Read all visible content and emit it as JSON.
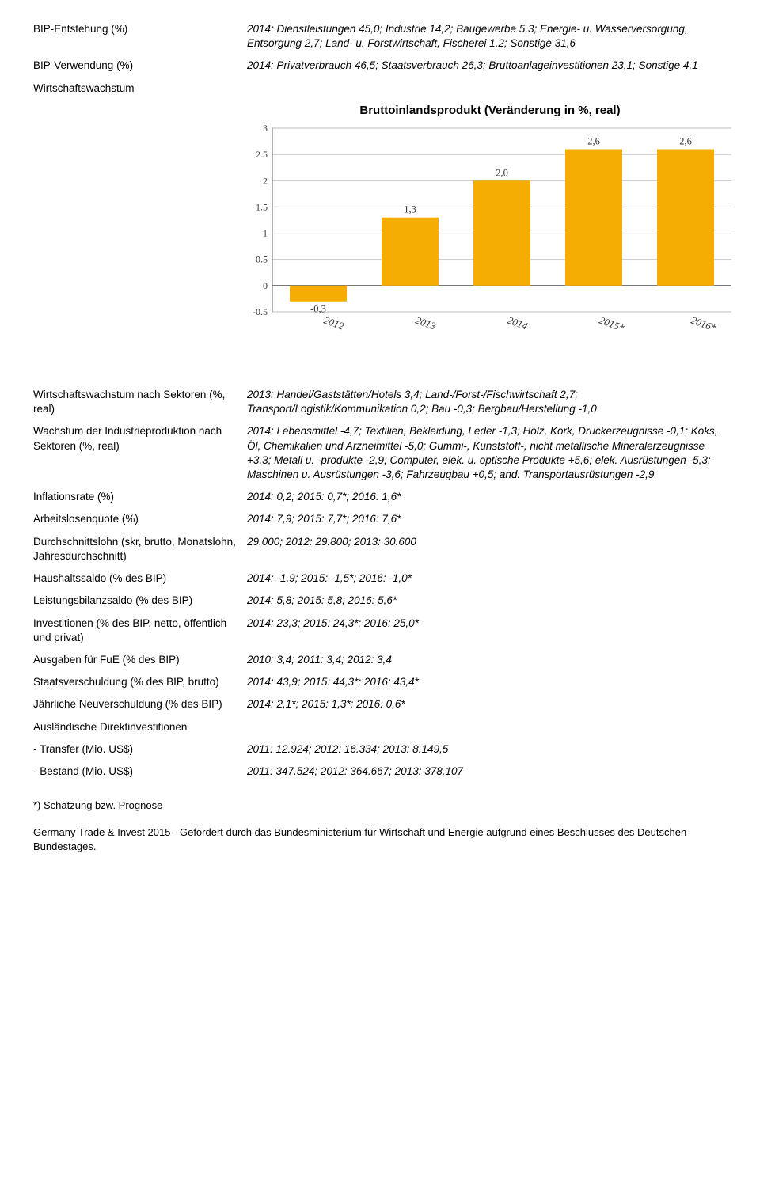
{
  "rows_top": [
    {
      "label": "BIP-Entstehung (%)",
      "value": "2014: Dienstleistungen 45,0; Industrie 14,2; Baugewerbe 5,3; Energie- u. Wasserversorgung, Entsorgung 2,7; Land- u. Forstwirtschaft, Fischerei 1,2; Sonstige 31,6"
    },
    {
      "label": "BIP-Verwendung (%)",
      "value": "2014: Privatverbrauch 46,5; Staatsverbrauch 26,3; Bruttoanlageinvestitionen 23,1; Sonstige 4,1"
    }
  ],
  "wirtschaftswachstum_label": "Wirtschaftswachstum",
  "chart": {
    "title": "Bruttoinlandsprodukt (Veränderung in %, real)",
    "categories": [
      "2012",
      "2013",
      "2014",
      "2015*",
      "2016*"
    ],
    "values": [
      -0.3,
      1.3,
      2.0,
      2.6,
      2.6
    ],
    "value_labels": [
      "-0,3",
      "1,3",
      "2,0",
      "2,6",
      "2,6"
    ],
    "yticks": [
      -0.5,
      0,
      0.5,
      1,
      1.5,
      2,
      2.5,
      3
    ],
    "ytick_labels": [
      "-0.5",
      "0",
      "0.5",
      "1",
      "1.5",
      "2",
      "2.5",
      "3"
    ],
    "bar_color": "#f4ad00",
    "grid_color": "#bdbdbd",
    "axis_color": "#666666",
    "label_color": "#333333",
    "bg_color": "#ffffff"
  },
  "rows_mid": [
    {
      "label": "Wirtschaftswachstum nach Sektoren (%, real)",
      "value": "2013: Handel/Gaststätten/Hotels 3,4; Land-/Forst-/Fischwirtschaft 2,7; Transport/Logistik/Kommunikation 0,2; Bau -0,3; Bergbau/Herstellung -1,0"
    },
    {
      "label": "Wachstum der Industrieproduktion nach Sektoren (%, real)",
      "value": "2014: Lebensmittel -4,7; Textilien, Bekleidung, Leder -1,3; Holz, Kork, Druckerzeugnisse -0,1; Koks, Öl, Chemikalien und Arzneimittel -5,0; Gummi-, Kunststoff-, nicht metallische Mineralerzeugnisse +3,3; Metall u. -produkte -2,9; Computer, elek. u. optische Produkte +5,6; elek. Ausrüstungen -5,3; Maschinen u. Ausrüstungen -3,6; Fahrzeugbau +0,5; and. Transportausrüstungen -2,9"
    },
    {
      "label": "Inflationsrate (%)",
      "value": "2014: 0,2; 2015: 0,7*; 2016: 1,6*"
    },
    {
      "label": "Arbeitslosenquote (%)",
      "value": "2014: 7,9; 2015: 7,7*; 2016: 7,6*"
    },
    {
      "label": "Durchschnittslohn (skr, brutto, Monatslohn, Jahresdurchschnitt)",
      "value": "29.000; 2012: 29.800; 2013: 30.600"
    },
    {
      "label": "Haushaltssaldo (% des BIP)",
      "value": "2014: -1,9; 2015: -1,5*; 2016: -1,0*"
    },
    {
      "label": "Leistungsbilanzsaldo (% des BIP)",
      "value": "2014: 5,8; 2015: 5,8; 2016: 5,6*"
    },
    {
      "label": "Investitionen (% des BIP, netto, öffentlich und privat)",
      "value": "2014: 23,3; 2015: 24,3*; 2016: 25,0*"
    },
    {
      "label": "Ausgaben für FuE (% des BIP)",
      "value": "2010: 3,4; 2011: 3,4; 2012: 3,4"
    },
    {
      "label": "Staatsverschuldung (% des BIP, brutto)",
      "value": "2014: 43,9; 2015: 44,3*; 2016: 43,4*"
    },
    {
      "label": "Jährliche Neuverschuldung (% des BIP)",
      "value": "2014: 2,1*; 2015: 1,3*; 2016: 0,6*"
    }
  ],
  "adi_label": "Ausländische Direktinvestitionen",
  "rows_adi": [
    {
      "label": "- Transfer (Mio. US$)",
      "value": "2011: 12.924; 2012: 16.334; 2013: 8.149,5"
    },
    {
      "label": "- Bestand (Mio. US$)",
      "value": "2011: 347.524; 2012: 364.667; 2013: 378.107"
    }
  ],
  "footnote": "*) Schätzung bzw. Prognose",
  "footer": "Germany Trade & Invest 2015 - Gefördert durch das Bundesministerium für Wirtschaft und Energie aufgrund eines Beschlusses des Deutschen Bundestages."
}
